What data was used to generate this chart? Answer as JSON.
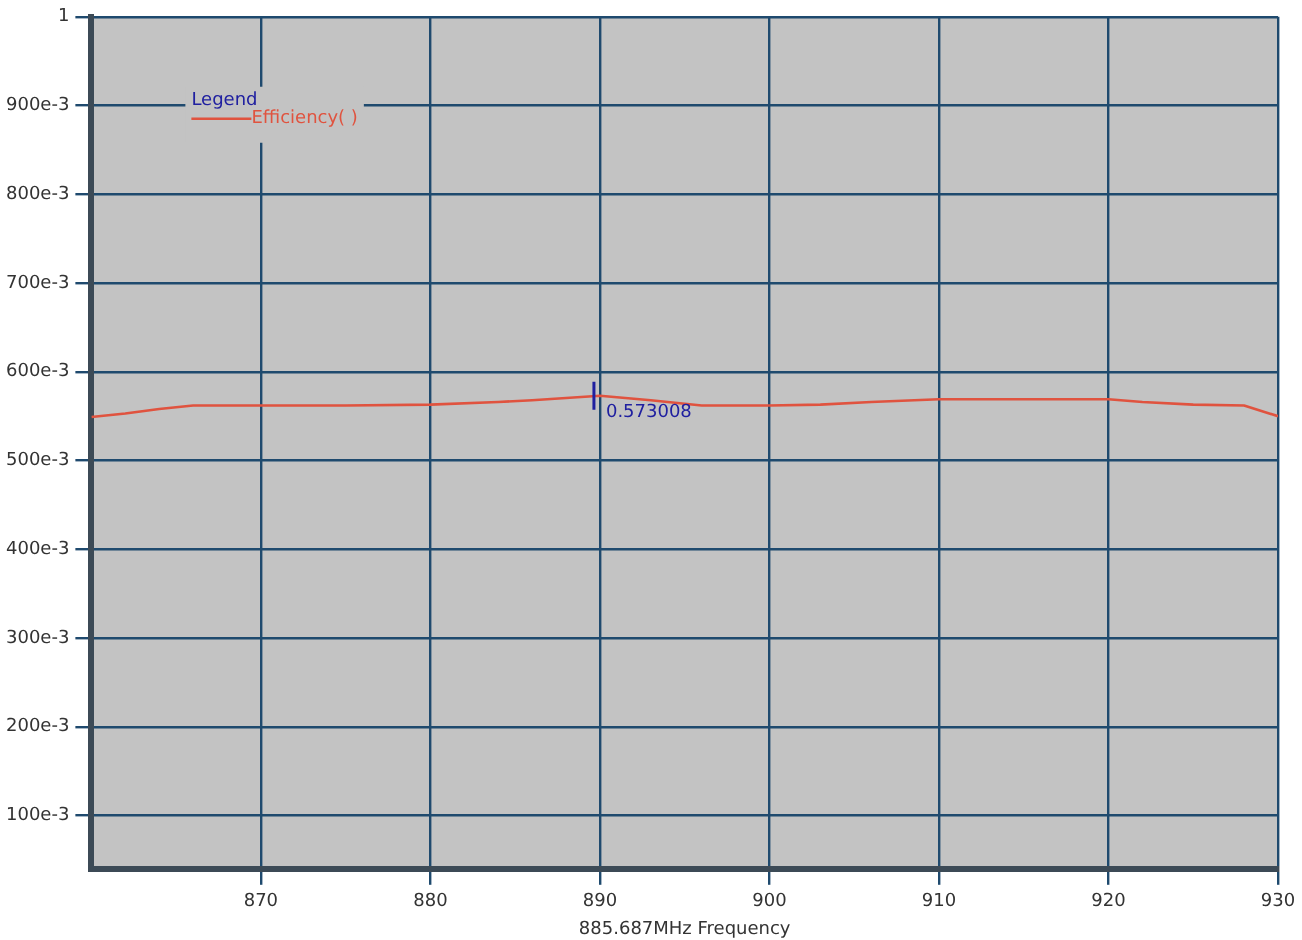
{
  "chart_data": {
    "type": "line",
    "xlabel": "885.687MHz Frequency",
    "legend_title": "Legend",
    "xlim": [
      860,
      930
    ],
    "xticks": [
      870,
      880,
      890,
      900,
      910,
      920,
      930
    ],
    "ylim": [
      0.04,
      1
    ],
    "yticks": [
      {
        "value": 0.1,
        "label": "100e-3"
      },
      {
        "value": 0.2,
        "label": "200e-3"
      },
      {
        "value": 0.3,
        "label": "300e-3"
      },
      {
        "value": 0.4,
        "label": "400e-3"
      },
      {
        "value": 0.5,
        "label": "500e-3"
      },
      {
        "value": 0.6,
        "label": "600e-3"
      },
      {
        "value": 0.7,
        "label": "700e-3"
      },
      {
        "value": 0.8,
        "label": "800e-3"
      },
      {
        "value": 0.9,
        "label": "900e-3"
      },
      {
        "value": 1,
        "label": "1"
      }
    ],
    "grid": true,
    "legend": "top left",
    "marker": "none",
    "line_style": "solid",
    "series": [
      {
        "name": "Efficiency( )",
        "color": "#e0533f",
        "x": [
          860,
          862,
          864,
          866,
          870,
          875,
          880,
          884,
          886,
          890,
          893,
          896,
          900,
          903,
          906,
          910,
          915,
          920,
          922,
          925,
          928,
          930
        ],
        "values": [
          0.549,
          0.553,
          0.558,
          0.562,
          0.562,
          0.562,
          0.563,
          0.566,
          0.568,
          0.573,
          0.568,
          0.562,
          0.562,
          0.563,
          0.566,
          0.569,
          0.569,
          0.569,
          0.566,
          0.563,
          0.562,
          0.55
        ]
      }
    ],
    "annotations": [
      {
        "text": "0.573008",
        "x": 890,
        "y": 0.573008
      }
    ]
  }
}
